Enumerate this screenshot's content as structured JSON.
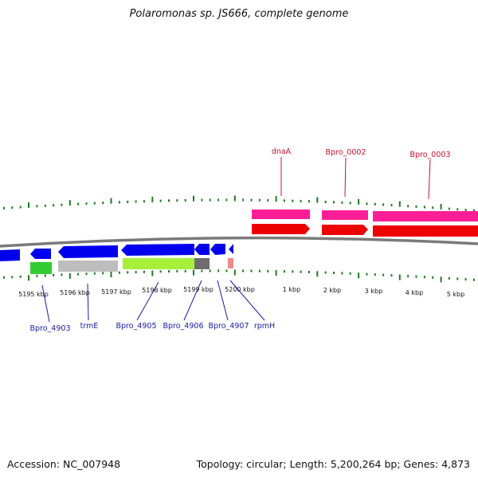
{
  "title": "Polaromonas sp. JS666, complete genome",
  "footer": {
    "accession": "Accession: NC_007948",
    "topology": "Topology: circular; Length: 5,200,264 bp; Genes: 4,873"
  },
  "kbp_labels": [
    "5195 kbp",
    "5196 kbp",
    "5197 kbp",
    "5198 kbp",
    "5199 kbp",
    "5200 kbp",
    "1 kbp",
    "2 kbp",
    "3 kbp",
    "4 kbp",
    "5 kbp"
  ],
  "genes_top": [
    "dnaA",
    "Bpro_0002",
    "Bpro_0003"
  ],
  "genes_bottom": [
    "Bpro_4903",
    "trmE",
    "Bpro_4905",
    "Bpro_4906",
    "Bpro_4907",
    "rpmH"
  ],
  "colors": {
    "forward_cds": "#ff0000",
    "forward_gene": "#ff1493",
    "reverse_cds": "#0000ee",
    "tick": "#1e7a1e",
    "backbone": "#808080",
    "label_red": "#c8102e",
    "label_blue": "#1a1aa6"
  }
}
